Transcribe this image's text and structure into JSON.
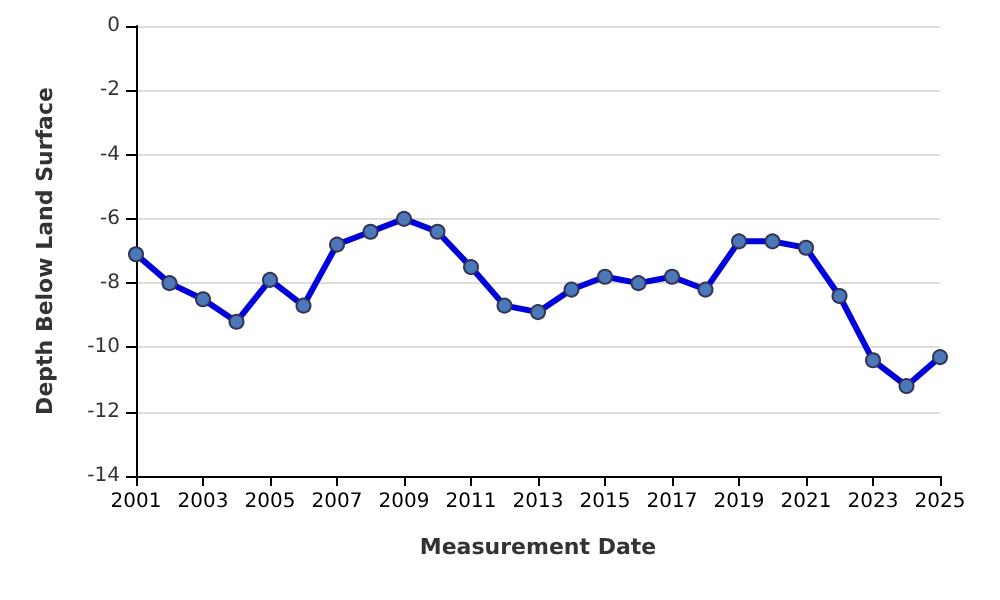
{
  "chart_data": {
    "type": "line",
    "xlabel": "Measurement Date",
    "ylabel": "Depth Below Land Surface",
    "x": [
      2001,
      2002,
      2003,
      2004,
      2005,
      2006,
      2007,
      2008,
      2009,
      2010,
      2011,
      2012,
      2013,
      2014,
      2015,
      2016,
      2017,
      2018,
      2019,
      2020,
      2021,
      2022,
      2023,
      2024,
      2025
    ],
    "series": [
      {
        "color": "#0000dd",
        "values": [
          -7.1,
          -8.0,
          -8.5,
          -9.2,
          -7.9,
          -8.7,
          -6.8,
          -6.4,
          -6.0,
          -6.4,
          -7.5,
          -8.7,
          -8.9,
          -8.2,
          -7.8,
          -8.0,
          -7.8,
          -8.2,
          -6.7,
          -6.7,
          -6.9,
          -8.4,
          -10.4,
          -11.2,
          -10.3
        ]
      }
    ],
    "xlim": [
      2001,
      2025
    ],
    "xticks": [
      2001,
      2003,
      2005,
      2007,
      2009,
      2011,
      2013,
      2015,
      2017,
      2019,
      2021,
      2023,
      2025
    ],
    "ylim": [
      -14,
      0
    ],
    "yticks": [
      -14,
      -12,
      -10,
      -8,
      -6,
      -4,
      -2,
      0
    ],
    "grid": "y",
    "marker": "circle",
    "line_style": "solid"
  }
}
